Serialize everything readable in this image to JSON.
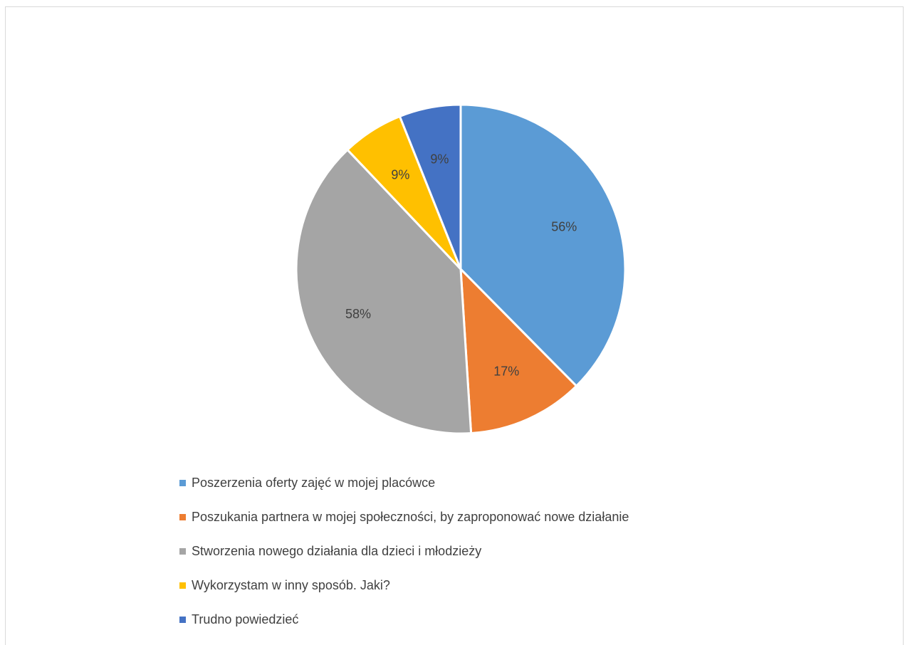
{
  "chart_data": {
    "type": "pie",
    "title": "",
    "slices": [
      {
        "label": "Poszerzenia oferty zajęć w mojej placówce",
        "value": 56,
        "display": "56%",
        "color": "#5B9BD5"
      },
      {
        "label": "Poszukania partnera w mojej społeczności, by zaproponować nowe działanie",
        "value": 17,
        "display": "17%",
        "color": "#ED7D31"
      },
      {
        "label": "Stworzenia nowego działania dla dzieci i młodzieży",
        "value": 58,
        "display": "58%",
        "color": "#A5A5A5"
      },
      {
        "label": "Wykorzystam w inny sposób. Jaki?",
        "value": 9,
        "display": "9%",
        "color": "#FFC000"
      },
      {
        "label": "Trudno powiedzieć",
        "value": 9,
        "display": "9%",
        "color": "#4472C4"
      }
    ],
    "legend_position": "bottom"
  }
}
